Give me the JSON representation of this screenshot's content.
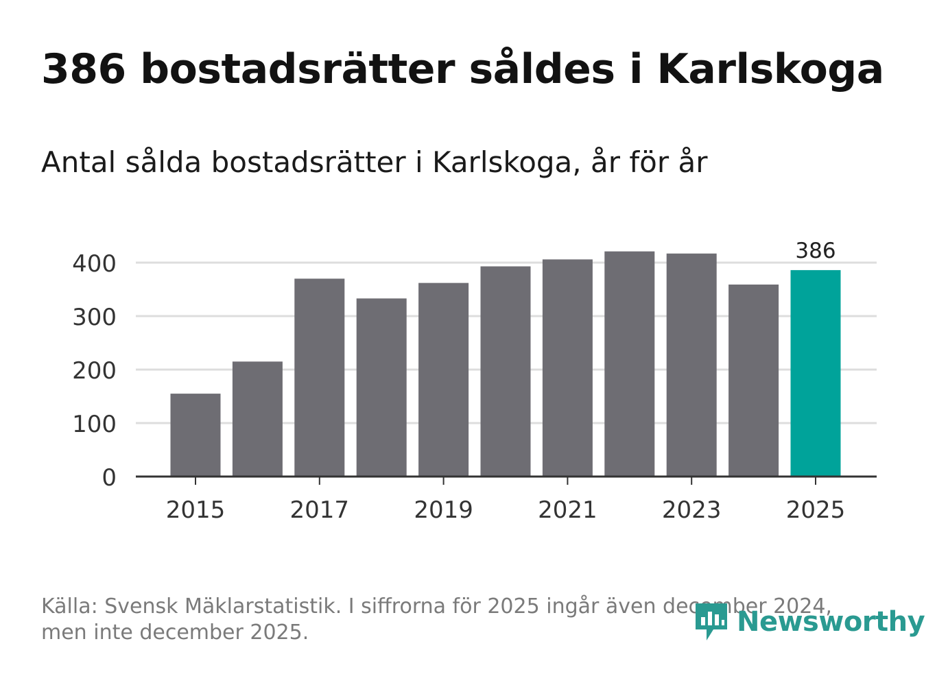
{
  "title": "386 bostadsrätter såldes i Karlskoga",
  "subtitle": "Antal sålda bostadsrätter i Karlskoga, år för år",
  "footer": {
    "source_line1": "Källa: Svensk Mäklarstatistik. I siffrorna för 2025 ingår även december 2024,",
    "source_line2": "men inte december 2025."
  },
  "logo": {
    "text": "Newsworthy",
    "icon": "bar-chart-speech-bubble-icon",
    "color": "#2a9a91"
  },
  "colors": {
    "bar": "#6e6d73",
    "highlight": "#00a39a",
    "grid": "#dddddd",
    "axis": "#333333"
  },
  "chart_data": {
    "type": "bar",
    "title": "Antal sålda bostadsrätter i Karlskoga, år för år",
    "xlabel": "",
    "ylabel": "",
    "categories": [
      "2015",
      "2016",
      "2017",
      "2018",
      "2019",
      "2020",
      "2021",
      "2022",
      "2023",
      "2024",
      "2025"
    ],
    "values": [
      155,
      215,
      370,
      333,
      362,
      393,
      406,
      421,
      417,
      359,
      386
    ],
    "highlight_index": 10,
    "data_labels": [
      {
        "index": 10,
        "text": "386"
      }
    ],
    "x_tick_labels": [
      "2015",
      "2017",
      "2019",
      "2021",
      "2023",
      "2025"
    ],
    "y_ticks": [
      0,
      100,
      200,
      300,
      400
    ],
    "y_tick_labels": [
      "0",
      "100",
      "200",
      "300",
      "400"
    ],
    "ylim": [
      0,
      430
    ],
    "grid": true,
    "legend": "none"
  }
}
